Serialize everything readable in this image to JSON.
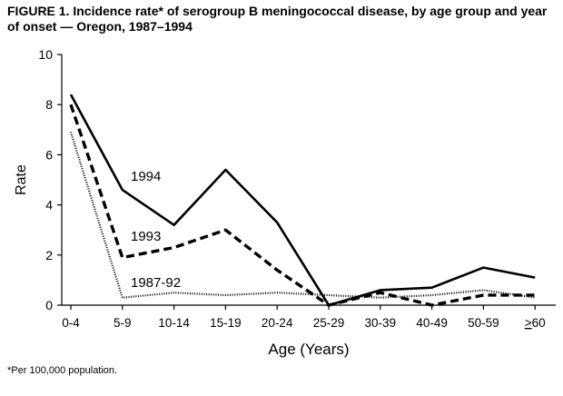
{
  "chart_data": {
    "type": "line",
    "title": "FIGURE 1. Incidence rate* of serogroup B meningococcal disease, by age group and year of onset — Oregon, 1987–1994",
    "xlabel": "Age (Years)",
    "ylabel": "Rate",
    "ylim": [
      0,
      10
    ],
    "yticks": [
      "0",
      "2",
      "4",
      "6",
      "8",
      "10"
    ],
    "categories": [
      "0-4",
      "5-9",
      "10-14",
      "15-19",
      "20-24",
      "25-29",
      "30-39",
      "40-49",
      "50-59",
      ">60"
    ],
    "series": [
      {
        "name": "1994",
        "style": "solid",
        "values": [
          8.4,
          4.6,
          3.2,
          5.4,
          3.3,
          0.0,
          0.6,
          0.7,
          1.5,
          1.1
        ]
      },
      {
        "name": "1993",
        "style": "dashed",
        "values": [
          8.0,
          1.9,
          2.3,
          3.0,
          1.4,
          0.0,
          0.5,
          0.0,
          0.4,
          0.4
        ]
      },
      {
        "name": "1987-92",
        "style": "dotted",
        "values": [
          6.9,
          0.3,
          0.5,
          0.4,
          0.5,
          0.4,
          0.3,
          0.4,
          0.6,
          0.3
        ]
      }
    ],
    "grid": false,
    "legend": "inline labels near lines"
  },
  "footnote": "*Per 100,000 population."
}
